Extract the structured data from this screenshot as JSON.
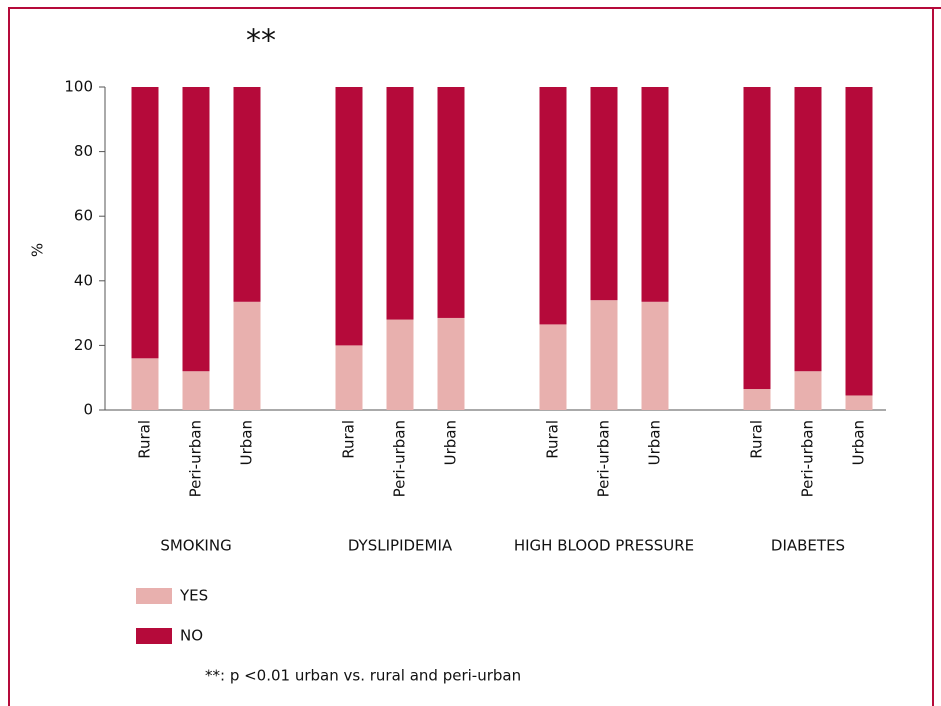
{
  "chart_data": {
    "type": "bar",
    "stacked": true,
    "y_label": "%",
    "groups": [
      "SMOKING",
      "DYSLIPIDEMIA",
      "HIGH BLOOD PRESSURE",
      "DIABETES"
    ],
    "categories": [
      "Rural",
      "Peri-urban",
      "Urban",
      "Rural",
      "Peri-urban",
      "Urban",
      "Rural",
      "Peri-urban",
      "Urban",
      "Rural",
      "Peri-urban",
      "Urban"
    ],
    "series": [
      {
        "name": "YES",
        "color": "#e8b0ae",
        "values": [
          16,
          12,
          33.5,
          20,
          28,
          28.5,
          26.5,
          34,
          33.5,
          6.5,
          12,
          4.5
        ]
      },
      {
        "name": "NO",
        "color": "#b50a3a",
        "values": [
          84,
          88,
          66.5,
          80,
          72,
          71.5,
          73.5,
          66,
          66.5,
          93.5,
          88,
          95.5
        ]
      }
    ],
    "ylim": [
      0,
      100
    ],
    "yticks": [
      0,
      20,
      40,
      60,
      80,
      100
    ],
    "annotation": {
      "text": "**",
      "category": 2
    },
    "footnote": "**: p <0.01 urban vs. rural and peri-urban"
  }
}
